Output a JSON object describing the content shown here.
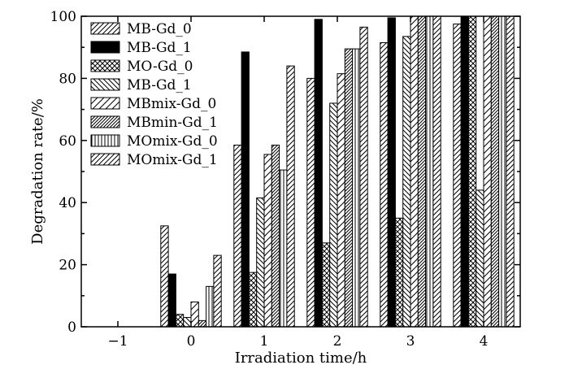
{
  "chart_data": {
    "type": "bar",
    "xlabel": "Irradiation time/h",
    "ylabel": "Degradation rate/%",
    "xlim": [
      -1.5,
      4.5
    ],
    "ylim": [
      0,
      100
    ],
    "x_ticks": [
      -1,
      0,
      1,
      2,
      3,
      4
    ],
    "x_tick_labels": [
      "−1",
      "0",
      "1",
      "2",
      "3",
      "4"
    ],
    "y_ticks": [
      0,
      20,
      40,
      60,
      80,
      100
    ],
    "y_tick_labels": [
      "0",
      "20",
      "40",
      "60",
      "80",
      "100"
    ],
    "grid": false,
    "legend_position": "top-left",
    "x": [
      0,
      1,
      2,
      3,
      4
    ],
    "series": [
      {
        "name": "MB-Gd_0",
        "pattern": "hatch-forward",
        "values": [
          32.5,
          58.5,
          80,
          91.5,
          97.5
        ]
      },
      {
        "name": "MB-Gd_1",
        "pattern": "solid",
        "values": [
          17,
          88.5,
          99,
          99.5,
          100
        ]
      },
      {
        "name": "MO-Gd_0",
        "pattern": "crosshatch",
        "values": [
          4,
          17.5,
          27,
          35,
          100
        ]
      },
      {
        "name": "MB-Gd_1",
        "pattern": "hatch-back",
        "values": [
          3,
          41.5,
          72,
          93.5,
          44
        ]
      },
      {
        "name": "MBmix-Gd_0",
        "pattern": "hatch-forward-wide",
        "values": [
          8,
          55.5,
          81.5,
          100,
          100
        ]
      },
      {
        "name": "MBmin-Gd_1",
        "pattern": "hatch-forward-dense",
        "values": [
          2,
          58.5,
          89.5,
          100,
          100
        ]
      },
      {
        "name": "MOmix-Gd_0",
        "pattern": "vertical",
        "values": [
          13,
          50.5,
          89.5,
          100,
          100
        ]
      },
      {
        "name": "MOmix-Gd_1",
        "pattern": "hatch-forward",
        "values": [
          23,
          84,
          96.5,
          100,
          100
        ]
      }
    ]
  }
}
